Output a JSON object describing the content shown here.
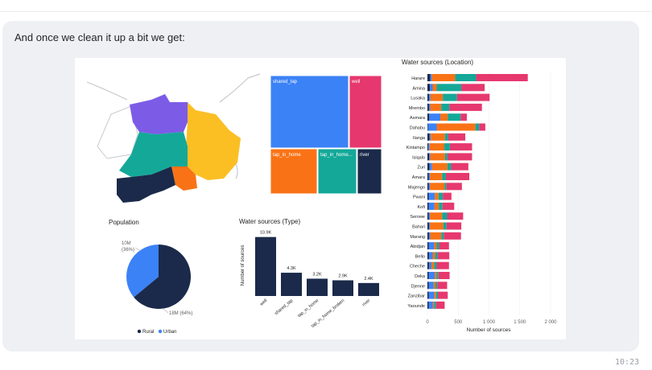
{
  "message": {
    "text": "And once we clean it up a bit we get:",
    "time": "10:23"
  },
  "colors": {
    "navy": "#1b2a4a",
    "blue": "#3b82f6",
    "orange": "#f97316",
    "teal": "#14a899",
    "pink": "#e6386e",
    "purple": "#7c5ce6",
    "yellow": "#fbbf24",
    "gray": "#9aa3ad"
  },
  "map": {
    "icon": "region-map"
  },
  "treemap": {
    "type": "treemap",
    "tiles": [
      {
        "label": "shared_tap",
        "color": "#3b82f6"
      },
      {
        "label": "well",
        "color": "#e6386e"
      },
      {
        "label": "tap_in_home",
        "color": "#f97316"
      },
      {
        "label": "tap_in_home...",
        "color": "#14a899"
      },
      {
        "label": "river",
        "color": "#1b2a4a"
      }
    ]
  },
  "chart_data": [
    {
      "type": "pie",
      "title": "Population",
      "slices": [
        {
          "name": "Rural",
          "value": 64,
          "label": "18M (64%)",
          "color": "#1b2a4a"
        },
        {
          "name": "Urban",
          "value": 36,
          "label": "10M\n(36%)",
          "color": "#3b82f6"
        }
      ],
      "legend": [
        "Rural",
        "Urban"
      ],
      "legend_position": "bottom"
    },
    {
      "type": "bar",
      "title": "Water sources (Type)",
      "ylabel": "Number of sources",
      "categories": [
        "well",
        "shared_tap",
        "tap_in_home",
        "tap_in_home_broken",
        "river"
      ],
      "values": [
        10.9,
        4.3,
        3.2,
        2.9,
        2.4
      ],
      "value_labels": [
        "10.9K",
        "4.3K",
        "3.2K",
        "2.9K",
        "2.4K"
      ],
      "ylim": [
        0,
        11
      ],
      "color": "#1b2a4a"
    },
    {
      "type": "bar",
      "orientation": "horizontal",
      "stacked": true,
      "title": "Water sources (Location)",
      "xlabel": "Number of sources",
      "x_ticks": [
        "0",
        "500",
        "1 000",
        "1 500",
        "2 000"
      ],
      "xlim": [
        0,
        2000
      ],
      "categories": [
        "Harare",
        "Amina",
        "Lusaka",
        "Mrembo",
        "Asmara",
        "Dahabu",
        "Ilanga",
        "Kintampo",
        "Isiqalo",
        "Zuri",
        "Amara",
        "Majengo",
        "Pwani",
        "Kofi",
        "Serowe",
        "Bahari",
        "Marang",
        "Abidjan",
        "Bello",
        "Cheche",
        "Deka",
        "Djenne",
        "Zanzibar",
        "Yaounde"
      ],
      "series": [
        {
          "color": "#1b2a4a",
          "values": [
            45,
            40,
            25,
            25,
            30,
            10,
            35,
            15,
            30,
            35,
            20,
            20,
            20,
            20,
            20,
            25,
            25,
            20,
            25,
            25,
            20,
            20,
            20,
            20
          ]
        },
        {
          "color": "#3b82f6",
          "values": [
            25,
            45,
            25,
            20,
            180,
            140,
            20,
            20,
            15,
            40,
            20,
            20,
            100,
            95,
            20,
            15,
            20,
            90,
            60,
            40,
            100,
            80,
            90,
            70
          ]
        },
        {
          "color": "#f97316",
          "values": [
            380,
            65,
            200,
            180,
            120,
            630,
            230,
            240,
            240,
            250,
            200,
            240,
            60,
            70,
            200,
            220,
            180,
            40,
            40,
            45,
            30,
            30,
            30,
            20
          ]
        },
        {
          "color": "#14a899",
          "values": [
            340,
            400,
            230,
            130,
            210,
            60,
            50,
            90,
            40,
            60,
            60,
            30,
            70,
            60,
            80,
            50,
            40,
            40,
            40,
            40,
            30,
            30,
            30,
            30
          ]
        },
        {
          "color": "#e6386e",
          "values": [
            840,
            380,
            530,
            530,
            100,
            100,
            280,
            360,
            400,
            280,
            380,
            250,
            140,
            190,
            260,
            240,
            280,
            160,
            190,
            200,
            180,
            160,
            160,
            140
          ]
        }
      ]
    }
  ]
}
